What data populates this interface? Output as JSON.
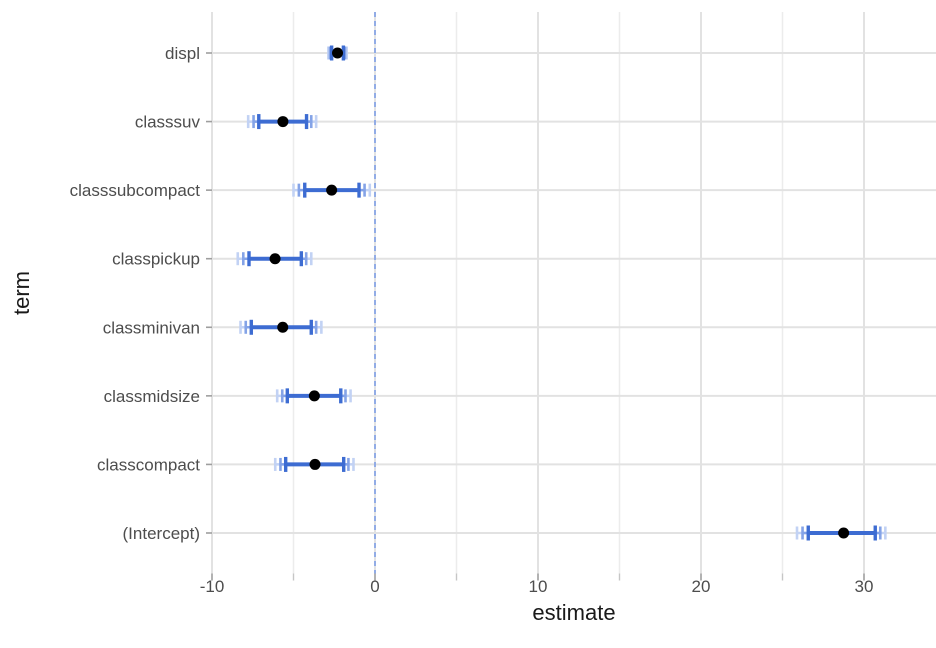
{
  "chart_data": {
    "type": "scatter",
    "subtype": "coefficient-dot-whisker-plot",
    "title": "",
    "xlabel": "estimate",
    "ylabel": "term",
    "xlim": [
      -10,
      34.4
    ],
    "grid": "on",
    "legend": "none",
    "x_major_ticks": [
      -10,
      0,
      10,
      20,
      30
    ],
    "x_minor_ticks": [
      -5,
      5,
      15,
      25
    ],
    "x_tick_labels": [
      "-10",
      "0",
      "10",
      "20",
      "30"
    ],
    "reference_line": {
      "x": 0,
      "linetype": "dashed"
    },
    "categories": [
      "displ",
      "classsuv",
      "classsubcompact",
      "classpickup",
      "classminivan",
      "classmidsize",
      "classcompact",
      "(Intercept)"
    ],
    "points": [
      {
        "term": "displ",
        "estimate": -2.3,
        "ci_inner": [
          -2.66,
          -1.94
        ],
        "ci_mid": [
          -2.76,
          -1.84
        ],
        "ci_outer": [
          -2.86,
          -1.74
        ]
      },
      {
        "term": "classsuv",
        "estimate": -5.65,
        "ci_inner": [
          -7.13,
          -4.2
        ],
        "ci_mid": [
          -7.45,
          -3.91
        ],
        "ci_outer": [
          -7.78,
          -3.61
        ]
      },
      {
        "term": "classsubcompact",
        "estimate": -2.66,
        "ci_inner": [
          -4.31,
          -0.98
        ],
        "ci_mid": [
          -4.67,
          -0.64
        ],
        "ci_outer": [
          -5.0,
          -0.32
        ]
      },
      {
        "term": "classpickup",
        "estimate": -6.13,
        "ci_inner": [
          -7.73,
          -4.52
        ],
        "ci_mid": [
          -8.08,
          -4.22
        ],
        "ci_outer": [
          -8.42,
          -3.91
        ]
      },
      {
        "term": "classminivan",
        "estimate": -5.66,
        "ci_inner": [
          -7.59,
          -3.91
        ],
        "ci_mid": [
          -7.93,
          -3.61
        ],
        "ci_outer": [
          -8.25,
          -3.29
        ]
      },
      {
        "term": "classmidsize",
        "estimate": -3.72,
        "ci_inner": [
          -5.38,
          -2.1
        ],
        "ci_mid": [
          -5.69,
          -1.81
        ],
        "ci_outer": [
          -6.0,
          -1.5
        ]
      },
      {
        "term": "classcompact",
        "estimate": -3.68,
        "ci_inner": [
          -5.48,
          -1.92
        ],
        "ci_mid": [
          -5.8,
          -1.63
        ],
        "ci_outer": [
          -6.12,
          -1.32
        ]
      },
      {
        "term": "(Intercept)",
        "estimate": 28.75,
        "ci_inner": [
          26.58,
          30.69
        ],
        "ci_mid": [
          26.23,
          31.0
        ],
        "ci_outer": [
          25.89,
          31.31
        ]
      }
    ],
    "colors": {
      "estimate_point": "#000000",
      "ci_inner": "#3d6cd2",
      "ci_mid": "#84a3e7",
      "ci_outer": "#c2d2f4",
      "reference_line": "#7f9ee6",
      "grid_major": "#e2e2e2",
      "grid_minor": "#ececec",
      "tick_major": "#9e9e9e",
      "tick_minor": "#c6c6c6",
      "axis_text": "#4d4d4d",
      "axis_title": "#1a1a1a",
      "background": "#ffffff"
    }
  }
}
